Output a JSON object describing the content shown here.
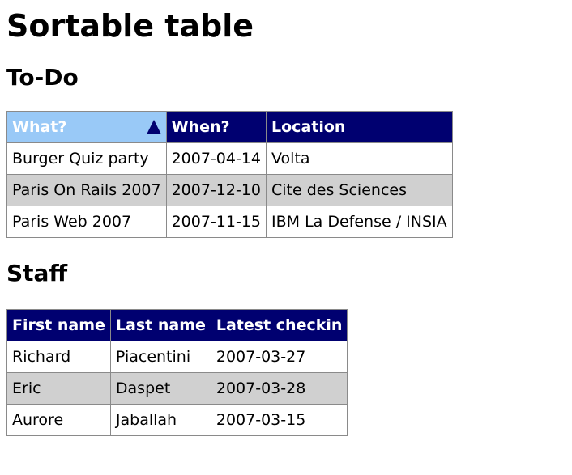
{
  "page": {
    "title": "Sortable table"
  },
  "todo": {
    "heading": "To-Do",
    "columns": [
      "What?",
      "When?",
      "Location"
    ],
    "sorted_column": "What?",
    "sort_direction": "ascending",
    "rows": [
      [
        "Burger Quiz party",
        "2007-04-14",
        "Volta"
      ],
      [
        "Paris On Rails 2007",
        "2007-12-10",
        "Cite des Sciences"
      ],
      [
        "Paris Web 2007",
        "2007-11-15",
        "IBM La Defense / INSIA"
      ]
    ]
  },
  "staff": {
    "heading": "Staff",
    "columns": [
      "First name",
      "Last name",
      "Latest checkin"
    ],
    "rows": [
      [
        "Richard",
        "Piacentini",
        "2007-03-27"
      ],
      [
        "Eric",
        "Daspet",
        "2007-03-28"
      ],
      [
        "Aurore",
        "Jaballah",
        "2007-03-15"
      ]
    ]
  },
  "colors": {
    "header_bg": "#000070",
    "sorted_header_bg": "#99c9f7",
    "header_text": "#ffffff",
    "stripe_bg": "#d0d0d0"
  },
  "icons": {
    "sort_indicator": "sort-ascending-icon"
  }
}
